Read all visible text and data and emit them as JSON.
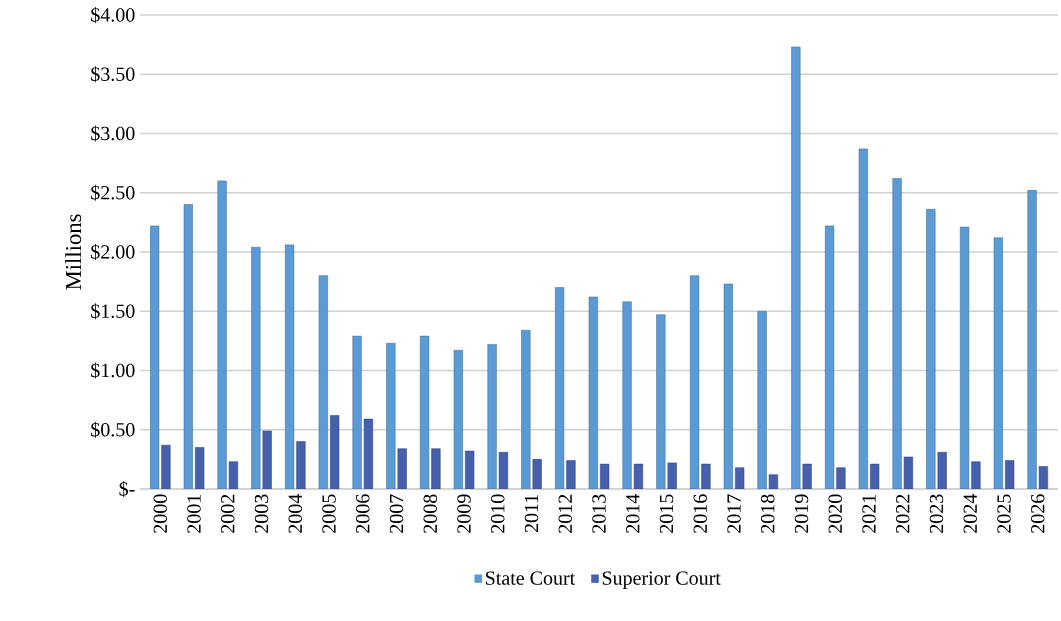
{
  "chart_data": {
    "type": "bar",
    "ylabel": "Millions",
    "categories": [
      "2000",
      "2001",
      "2002",
      "2003",
      "2004",
      "2005",
      "2006",
      "2007",
      "2008",
      "2009",
      "2010",
      "2011",
      "2012",
      "2013",
      "2014",
      "2015",
      "2016",
      "2017",
      "2018",
      "2019",
      "2020",
      "2021",
      "2022",
      "2023",
      "2024",
      "2025",
      "2026"
    ],
    "series": [
      {
        "name": "State Court",
        "color": "#5b9bd5",
        "values": [
          2.22,
          2.4,
          2.6,
          2.04,
          2.06,
          1.8,
          1.29,
          1.23,
          1.29,
          1.17,
          1.22,
          1.34,
          1.7,
          1.62,
          1.58,
          1.47,
          1.8,
          1.73,
          1.5,
          3.73,
          2.22,
          2.87,
          2.62,
          2.36,
          2.21,
          2.12,
          2.52
        ]
      },
      {
        "name": "Superior Court",
        "color": "#4660ae",
        "values": [
          0.37,
          0.35,
          0.23,
          0.49,
          0.4,
          0.62,
          0.59,
          0.34,
          0.34,
          0.32,
          0.31,
          0.25,
          0.24,
          0.21,
          0.21,
          0.22,
          0.21,
          0.18,
          0.12,
          0.21,
          0.18,
          0.21,
          0.27,
          0.31,
          0.23,
          0.24,
          0.19
        ]
      }
    ],
    "ylim": [
      0,
      4
    ],
    "yticks": [
      {
        "value": 0,
        "label": "$-"
      },
      {
        "value": 0.5,
        "label": "$0.50"
      },
      {
        "value": 1,
        "label": "$1.00"
      },
      {
        "value": 1.5,
        "label": "$1.50"
      },
      {
        "value": 2,
        "label": "$2.00"
      },
      {
        "value": 2.5,
        "label": "$2.50"
      },
      {
        "value": 3,
        "label": "$3.00"
      },
      {
        "value": 3.5,
        "label": "$3.50"
      },
      {
        "value": 4,
        "label": "$4.00"
      }
    ],
    "grid": "y",
    "legend": "bottom"
  }
}
